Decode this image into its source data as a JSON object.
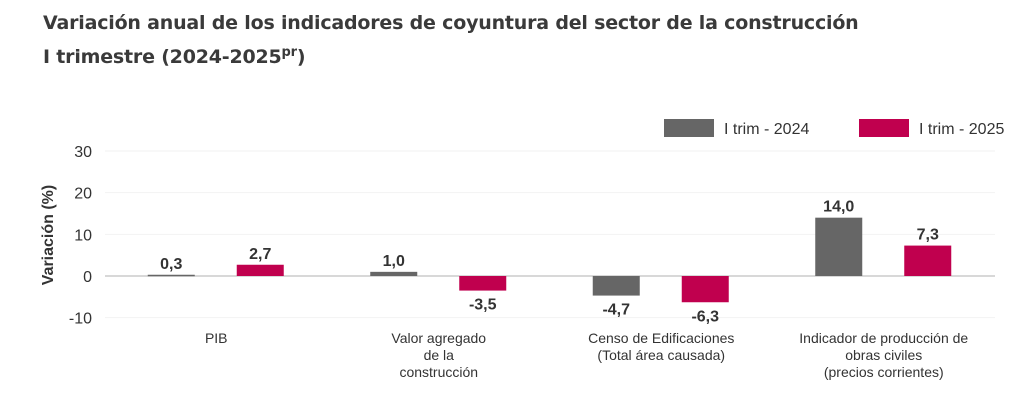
{
  "chart_data": {
    "type": "bar",
    "title": "Variación anual de los indicadores de coyuntura del sector de la construcción",
    "subtitle": "I trimestre (2024-2025",
    "subtitle_sup": "pr",
    "subtitle_end": ")",
    "ylabel": "Variación (%)",
    "xlabel": "",
    "ylim": [
      -10,
      30
    ],
    "yticks": [
      "30",
      "20",
      "10",
      "0",
      "-10"
    ],
    "ytick_values": [
      30,
      20,
      10,
      0,
      -10
    ],
    "categories": [
      [
        "PIB"
      ],
      [
        "Valor agregado",
        "de la",
        "construcción"
      ],
      [
        "Censo de Edificaciones",
        "(Total área causada)"
      ],
      [
        "Indicador de producción de",
        "obras civiles",
        "(precios corrientes)"
      ]
    ],
    "series": [
      {
        "name": "I trim - 2024",
        "color": "#666666",
        "values": [
          0.3,
          1.0,
          -4.7,
          14.0
        ],
        "labels": [
          "0,3",
          "1,0",
          "-4,7",
          "14,0"
        ]
      },
      {
        "name": "I trim - 2025",
        "color": "#c0004e",
        "values": [
          2.7,
          -3.5,
          -6.3,
          7.3
        ],
        "labels": [
          "2,7",
          "-3,5",
          "-6,3",
          "7,3"
        ]
      }
    ],
    "legend": "top-right",
    "grid": true
  }
}
